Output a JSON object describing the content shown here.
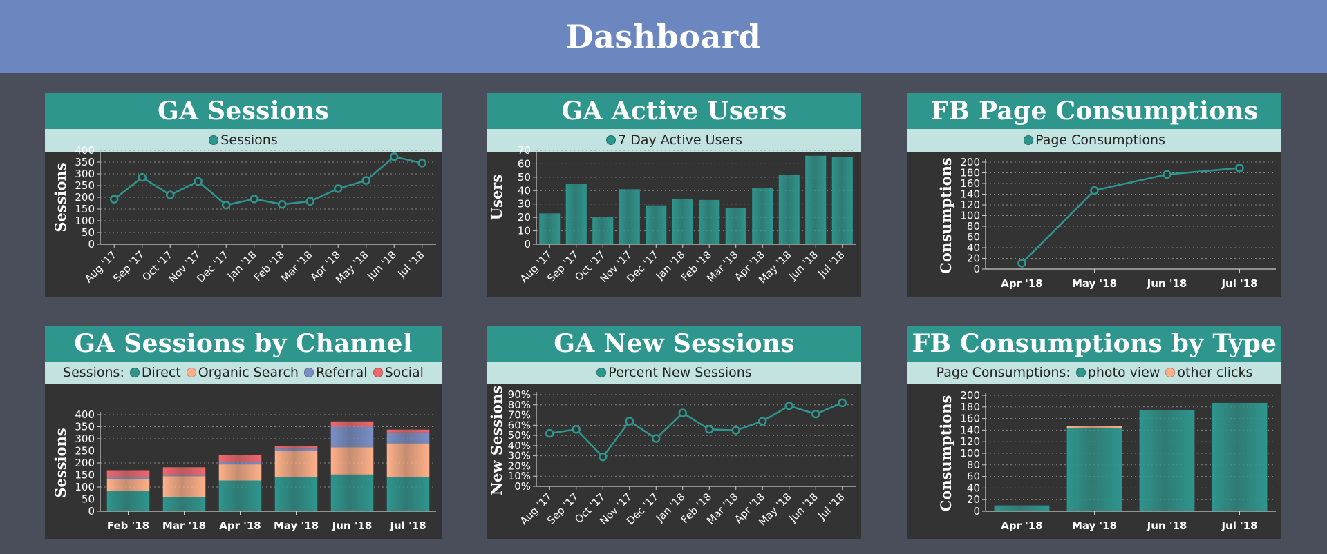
{
  "page": {
    "title": "Dashboard"
  },
  "colors": {
    "header": "#6c87bf",
    "background": "#4a4e5a",
    "panel": "#333333",
    "title_bar": "#2e968d",
    "legend_bar": "#c2e3df",
    "teal": "#2e968d",
    "orange": "#ffb08a",
    "blue": "#7b8fc6",
    "red": "#f0686e"
  },
  "panels": [
    {
      "id": "ga-sessions",
      "title": "GA Sessions",
      "legend_prefix": "",
      "legend": [
        {
          "label": "Sessions",
          "color": "#2e968d"
        }
      ]
    },
    {
      "id": "ga-active-users",
      "title": "GA Active Users",
      "legend_prefix": "",
      "legend": [
        {
          "label": "7 Day Active Users",
          "color": "#2e968d"
        }
      ]
    },
    {
      "id": "fb-page-consumptions",
      "title": "FB Page Consumptions",
      "legend_prefix": "",
      "legend": [
        {
          "label": "Page Consumptions",
          "color": "#2e968d"
        }
      ]
    },
    {
      "id": "ga-sessions-by-channel",
      "title": "GA Sessions by Channel",
      "legend_prefix": "Sessions:",
      "legend": [
        {
          "label": "Direct",
          "color": "#2e968d"
        },
        {
          "label": "Organic Search",
          "color": "#ffb08a"
        },
        {
          "label": "Referral",
          "color": "#7b8fc6"
        },
        {
          "label": "Social",
          "color": "#f0686e"
        }
      ]
    },
    {
      "id": "ga-new-sessions",
      "title": "GA New Sessions",
      "legend_prefix": "",
      "legend": [
        {
          "label": "Percent New Sessions",
          "color": "#2e968d"
        }
      ]
    },
    {
      "id": "fb-consumptions-by-type",
      "title": "FB Consumptions by Type",
      "legend_prefix": "Page Consumptions:",
      "legend": [
        {
          "label": "photo view",
          "color": "#2e968d"
        },
        {
          "label": "other clicks",
          "color": "#ffb08a"
        }
      ]
    }
  ],
  "chart_data": [
    {
      "type": "line",
      "title": "GA Sessions",
      "ylabel": "Sessions",
      "categories": [
        "Aug '17",
        "Sep '17",
        "Oct '17",
        "Nov '17",
        "Dec '17",
        "Jan '18",
        "Feb '18",
        "Mar '18",
        "Apr '18",
        "May '18",
        "Jun '18",
        "Jul '18"
      ],
      "yticks": [
        "0",
        "50",
        "100",
        "150",
        "200",
        "250",
        "300",
        "350",
        "400"
      ],
      "ylim": [
        0,
        400
      ],
      "grid": true,
      "series": [
        {
          "name": "Sessions",
          "values": [
            192,
            285,
            210,
            268,
            167,
            193,
            170,
            183,
            237,
            272,
            373,
            346
          ]
        }
      ]
    },
    {
      "type": "bar",
      "title": "GA Active Users",
      "ylabel": "Users",
      "categories": [
        "Aug '17",
        "Sep '17",
        "Oct '17",
        "Nov '17",
        "Dec '17",
        "Jan '18",
        "Feb '18",
        "Mar '18",
        "Apr '18",
        "May '18",
        "Jun '18",
        "Jul '18"
      ],
      "yticks": [
        "0",
        "10",
        "20",
        "30",
        "40",
        "50",
        "60",
        "70"
      ],
      "ylim": [
        0,
        70
      ],
      "grid": true,
      "series": [
        {
          "name": "7 Day Active Users",
          "values": [
            23,
            45,
            20,
            41,
            29,
            34,
            33,
            27,
            42,
            52,
            66,
            65
          ]
        }
      ]
    },
    {
      "type": "line",
      "title": "FB Page Consumptions",
      "ylabel": "Consumptions",
      "categories": [
        "Apr '18",
        "May '18",
        "Jun '18",
        "Jul '18"
      ],
      "yticks": [
        "0",
        "20",
        "40",
        "60",
        "80",
        "100",
        "120",
        "140",
        "160",
        "180",
        "200"
      ],
      "ylim": [
        0,
        200
      ],
      "grid": true,
      "series": [
        {
          "name": "Page Consumptions",
          "values": [
            11,
            147,
            177,
            189
          ]
        }
      ]
    },
    {
      "type": "bar",
      "stacked": true,
      "title": "GA Sessions by Channel",
      "ylabel": "Sessions",
      "categories": [
        "Feb '18",
        "Mar '18",
        "Apr '18",
        "May '18",
        "Jun '18",
        "Jul '18"
      ],
      "yticks": [
        "0",
        "50",
        "100",
        "150",
        "200",
        "250",
        "300",
        "350",
        "400"
      ],
      "ylim": [
        0,
        400
      ],
      "grid": true,
      "series": [
        {
          "name": "Direct",
          "values": [
            85,
            60,
            127,
            141,
            152,
            141
          ]
        },
        {
          "name": "Organic Search",
          "values": [
            50,
            85,
            67,
            110,
            113,
            140
          ]
        },
        {
          "name": "Referral",
          "values": [
            5,
            5,
            10,
            8,
            85,
            45
          ]
        },
        {
          "name": "Social",
          "values": [
            30,
            32,
            30,
            11,
            22,
            12
          ]
        }
      ]
    },
    {
      "type": "line",
      "title": "GA New Sessions",
      "ylabel": "New Sessions",
      "categories": [
        "Aug '17",
        "Sep '17",
        "Oct '17",
        "Nov '17",
        "Dec '17",
        "Jan '18",
        "Feb '18",
        "Mar '18",
        "Apr '18",
        "May '18",
        "Jun '18",
        "Jul '18"
      ],
      "yticks": [
        "0%",
        "10%",
        "20%",
        "30%",
        "40%",
        "50%",
        "60%",
        "70%",
        "80%",
        "90%"
      ],
      "ylim": [
        0,
        90
      ],
      "grid": true,
      "series": [
        {
          "name": "Percent New Sessions",
          "values": [
            52,
            56,
            29,
            64,
            47,
            72,
            56,
            55,
            64,
            79,
            71,
            82
          ]
        }
      ]
    },
    {
      "type": "bar",
      "stacked": true,
      "title": "FB Consumptions by Type",
      "ylabel": "Consumptions",
      "categories": [
        "Apr '18",
        "May '18",
        "Jun '18",
        "Jul '18"
      ],
      "yticks": [
        "0",
        "20",
        "40",
        "60",
        "80",
        "100",
        "120",
        "140",
        "160",
        "180",
        "200"
      ],
      "ylim": [
        0,
        200
      ],
      "grid": true,
      "series": [
        {
          "name": "photo view",
          "values": [
            10,
            144,
            175,
            187
          ]
        },
        {
          "name": "other clicks",
          "values": [
            0,
            3,
            0,
            0
          ]
        }
      ]
    }
  ]
}
